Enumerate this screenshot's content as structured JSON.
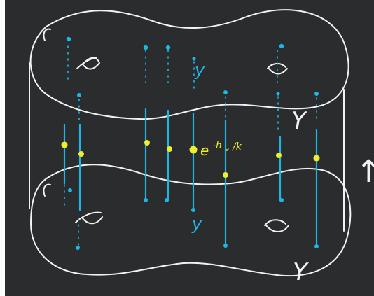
{
  "colors": {
    "outer_background": "#ffffff",
    "board": "#2a2c2e",
    "chalk_white": "#f2f2f2",
    "chalk_cyan": "#1fb6e6",
    "chalk_yellow": "#f2ee2a"
  },
  "labels": {
    "top_surface": "Y",
    "bottom_surface": "Y",
    "top_point": "y",
    "bottom_point": "y",
    "weight": "e",
    "weight_exponent": "-h",
    "weight_subscript": "a",
    "weight_tail": "/k"
  },
  "arrow": {
    "glyph": "↑",
    "icon": "up-arrow-icon"
  }
}
